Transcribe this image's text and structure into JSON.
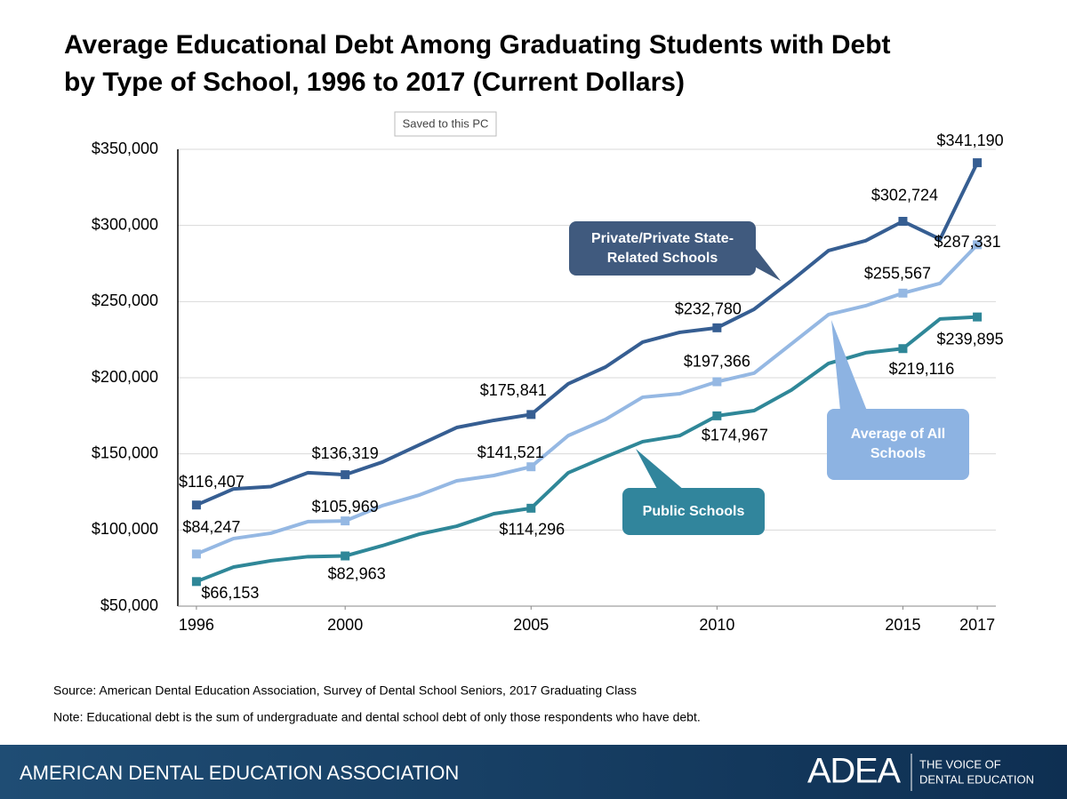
{
  "chart_data": {
    "type": "line",
    "title": "Average Educational Debt Among Graduating Students with Debt by Type of School, 1996 to 2017 (Current Dollars)",
    "x": [
      1996,
      1997,
      1998,
      1999,
      2000,
      2001,
      2002,
      2003,
      2004,
      2005,
      2006,
      2007,
      2008,
      2009,
      2010,
      2011,
      2012,
      2013,
      2014,
      2015,
      2016,
      2017
    ],
    "xlim": [
      1995.5,
      2017.5
    ],
    "xticks": [
      1996,
      2000,
      2005,
      2010,
      2015,
      2017
    ],
    "ylim": [
      50000,
      350000
    ],
    "yticks": [
      {
        "value": 50000,
        "label": "$50,000"
      },
      {
        "value": 100000,
        "label": "$100,000"
      },
      {
        "value": 150000,
        "label": "$150,000"
      },
      {
        "value": 200000,
        "label": "$200,000"
      },
      {
        "value": 250000,
        "label": "$250,000"
      },
      {
        "value": 300000,
        "label": "$300,000"
      },
      {
        "value": 350000,
        "label": "$350,000"
      }
    ],
    "grid": true,
    "series": [
      {
        "name": "Private/Private State-Related Schools",
        "color": "#365e92",
        "values": [
          116407,
          127000,
          128500,
          137600,
          136319,
          144600,
          156000,
          167300,
          172000,
          175841,
          196000,
          207000,
          223400,
          229800,
          232780,
          245000,
          263700,
          283500,
          290000,
          302724,
          291000,
          341190
        ],
        "value_labels": [
          "$116,407",
          null,
          null,
          null,
          "$136,319",
          null,
          null,
          null,
          null,
          "$175,841",
          null,
          null,
          null,
          null,
          "$232,780",
          null,
          null,
          null,
          null,
          "$302,724",
          null,
          "$341,190"
        ]
      },
      {
        "name": "Average of All Schools",
        "color": "#95b8e3",
        "values": [
          84247,
          94400,
          97900,
          105500,
          105969,
          116000,
          123000,
          132300,
          135800,
          141521,
          162000,
          172600,
          187200,
          189500,
          197366,
          203000,
          222200,
          241500,
          247300,
          255567,
          262000,
          287331
        ],
        "value_labels": [
          "$84,247",
          null,
          null,
          null,
          "$105,969",
          null,
          null,
          null,
          null,
          "$141,521",
          null,
          null,
          null,
          null,
          "$197,366",
          null,
          null,
          null,
          null,
          "$255,567",
          null,
          "$287,331"
        ]
      },
      {
        "name": "Public Schools",
        "color": "#2f8798",
        "values": [
          66153,
          75700,
          79800,
          82500,
          82963,
          89700,
          97300,
          102500,
          110700,
          114296,
          137600,
          148000,
          158000,
          162000,
          174967,
          178400,
          191900,
          209400,
          216400,
          219116,
          238600,
          239895
        ],
        "value_labels": [
          "$66,153",
          null,
          null,
          null,
          "$82,963",
          null,
          null,
          null,
          null,
          "$114,296",
          null,
          null,
          null,
          null,
          "$174,967",
          null,
          null,
          null,
          null,
          "$219,116",
          null,
          "$239,895"
        ]
      }
    ],
    "source": "Source: American Dental Education Association, Survey of Dental School Seniors, 2017 Graduating Class",
    "note": "Note: Educational debt is the sum of undergraduate and dental school debt of only those respondents who have debt."
  },
  "slide": {
    "tooltip": "Saved to this PC",
    "footer": "AMERICAN DENTAL EDUCATION ASSOCIATION",
    "logo": "ADEA",
    "tagline_1": "THE VOICE OF",
    "tagline_2": "DENTAL EDUCATION"
  }
}
